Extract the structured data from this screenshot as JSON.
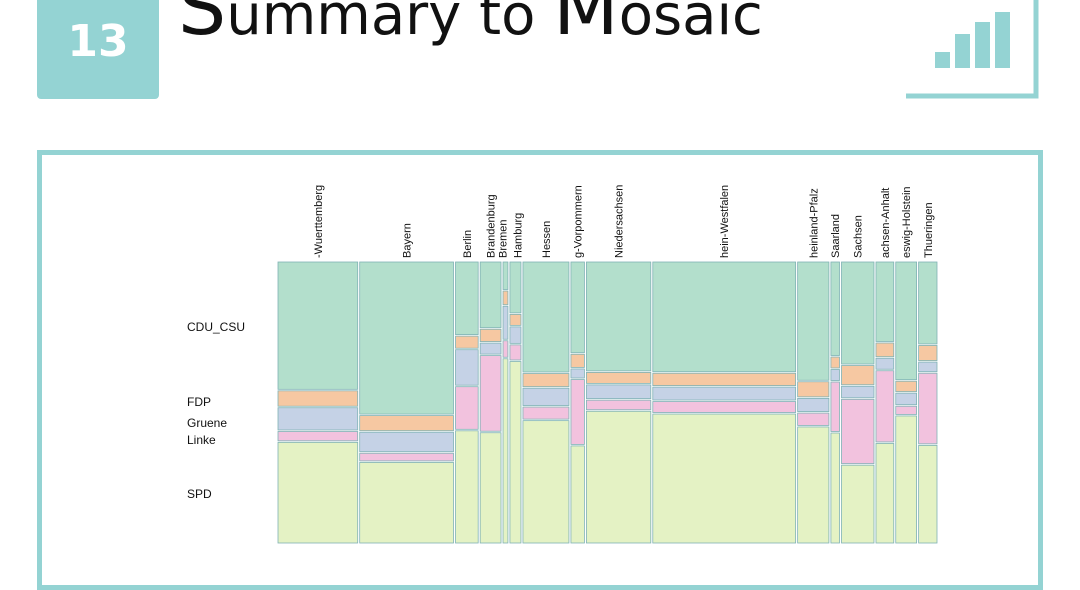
{
  "header": {
    "badge_number": "13",
    "title_prefix": "S",
    "title_mid": "ummary to ",
    "title_m": "M",
    "title_suffix": "osaic",
    "accent_color": "#94d3d3",
    "icon": "bar-chart-icon"
  },
  "chart_data": {
    "type": "mosaic",
    "title": "",
    "categories": [
      "Baden-Wuerttemberg",
      "Bayern",
      "Berlin",
      "Brandenburg",
      "Bremen",
      "Hamburg",
      "Hessen",
      "Mecklenburg-Vorpommern",
      "Niedersachsen",
      "Nordrhein-Westfalen",
      "Rheinland-Pfalz",
      "Saarland",
      "Sachsen",
      "Sachsen-Anhalt",
      "Schleswig-Holstein",
      "Thueringen"
    ],
    "category_labels_visible": [
      "-Wuerttemberg",
      "Bayern",
      "Berlin",
      "Brandenburg",
      "Bremen",
      "Hamburg",
      "Hessen",
      "g-Vorpommern",
      "Niedersachsen",
      "hein-Westfalen",
      "heinland-Pfalz",
      "Saarland",
      "Sachsen",
      "achsen-Anhalt",
      "eswig-Holstein",
      "Thueringen"
    ],
    "column_widths": [
      13.0,
      15.3,
      3.7,
      3.4,
      0.8,
      1.8,
      7.5,
      2.2,
      10.5,
      23.3,
      5.1,
      1.4,
      5.3,
      2.9,
      3.4,
      3.0
    ],
    "parties": [
      "CDU_CSU",
      "FDP",
      "Gruene",
      "Linke",
      "SPD"
    ],
    "party_labels": [
      {
        "label": "CDU_CSU",
        "party": "CDU_CSU"
      },
      {
        "label": "FDP",
        "party": "FDP"
      },
      {
        "label": "Gruene",
        "party": "Gruene"
      },
      {
        "label": "Linke",
        "party": "Linke"
      },
      {
        "label": "SPD",
        "party": "SPD"
      }
    ],
    "series": [
      {
        "name": "CDU_CSU",
        "values": [
          0.463,
          0.553,
          0.264,
          0.239,
          0.1,
          0.185,
          0.4,
          0.33,
          0.396,
          0.399,
          0.43,
          0.34,
          0.371,
          0.289,
          0.428,
          0.298
        ]
      },
      {
        "name": "FDP",
        "values": [
          0.056,
          0.055,
          0.044,
          0.045,
          0.05,
          0.04,
          0.048,
          0.048,
          0.04,
          0.045,
          0.055,
          0.04,
          0.07,
          0.05,
          0.038,
          0.055
        ]
      },
      {
        "name": "Gruene",
        "values": [
          0.081,
          0.071,
          0.129,
          0.04,
          0.12,
          0.06,
          0.063,
          0.033,
          0.05,
          0.047,
          0.048,
          0.04,
          0.042,
          0.04,
          0.042,
          0.035
        ]
      },
      {
        "name": "Linke",
        "values": [
          0.034,
          0.028,
          0.155,
          0.275,
          0.06,
          0.055,
          0.044,
          0.236,
          0.035,
          0.04,
          0.045,
          0.18,
          0.234,
          0.259,
          0.03,
          0.257
        ]
      },
      {
        "name": "SPD",
        "values": [
          0.366,
          0.293,
          0.408,
          0.401,
          0.67,
          0.66,
          0.445,
          0.353,
          0.479,
          0.469,
          0.422,
          0.4,
          0.283,
          0.362,
          0.462,
          0.355
        ]
      }
    ],
    "colors": {
      "CDU_CSU": "#b3dfcc",
      "FDP": "#f6c8a2",
      "Gruene": "#c5d2e6",
      "Linke": "#f2c2de",
      "SPD": "#e4f2c4"
    },
    "outline_color": "#7fb2b5",
    "legend": "none",
    "grid": false
  }
}
